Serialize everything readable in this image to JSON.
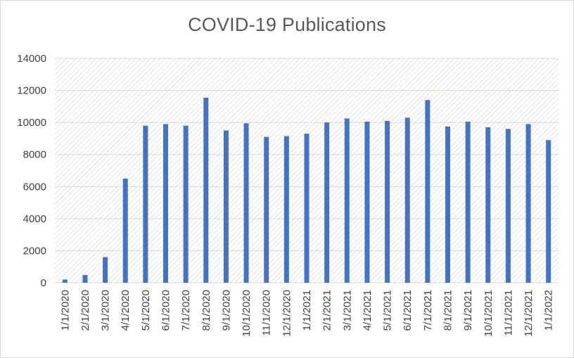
{
  "chart_data": {
    "type": "bar",
    "title": "COVID-19 Publications",
    "xlabel": "",
    "ylabel": "",
    "ylim": [
      0,
      14000
    ],
    "yticks": [
      0,
      2000,
      4000,
      6000,
      8000,
      10000,
      12000,
      14000
    ],
    "grid": true,
    "legend": "none",
    "colors": {
      "bar": "#4472c4",
      "grid": "#d9d9d9",
      "hatch": "#d0d0d0",
      "text": "#404040",
      "title": "#595959"
    },
    "categories": [
      "1/1/2020",
      "2/1/2020",
      "3/1/2020",
      "4/1/2020",
      "5/1/2020",
      "6/1/2020",
      "7/1/2020",
      "8/1/2020",
      "9/1/2020",
      "10/1/2020",
      "11/1/2020",
      "12/1/2020",
      "1/1/2021",
      "2/1/2021",
      "3/1/2021",
      "4/1/2021",
      "5/1/2021",
      "6/1/2021",
      "7/1/2021",
      "8/1/2021",
      "9/1/2021",
      "10/1/2021",
      "11/1/2021",
      "12/1/2021",
      "1/1/2022"
    ],
    "values": [
      200,
      480,
      1600,
      6500,
      9800,
      9900,
      9800,
      11550,
      9500,
      9950,
      9100,
      9150,
      9300,
      10000,
      10250,
      10050,
      10100,
      10300,
      11400,
      9750,
      10050,
      9700,
      9600,
      9900,
      8900
    ]
  }
}
